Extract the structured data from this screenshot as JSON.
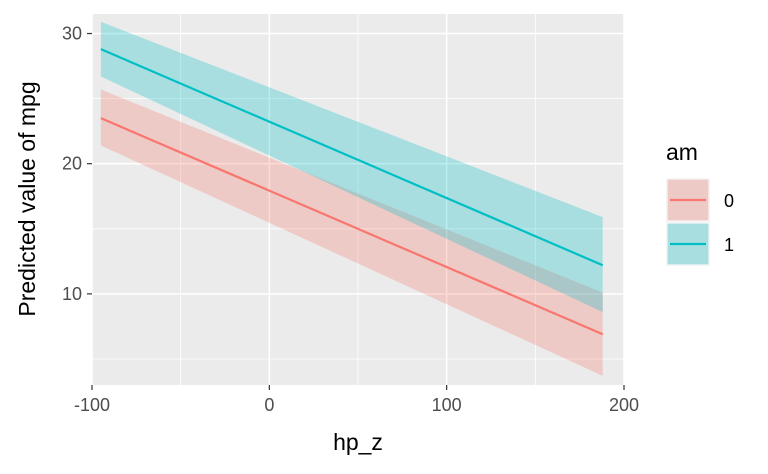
{
  "chart_data": {
    "type": "line",
    "xlabel": "hp_z",
    "ylabel": "Predicted value of mpg",
    "xlim": [
      -100,
      200
    ],
    "ylim": [
      3,
      31.5
    ],
    "x_ticks": [
      -100,
      0,
      100,
      200
    ],
    "y_ticks": [
      10,
      20,
      30
    ],
    "grid": true,
    "legend": {
      "title": "am",
      "position": "right"
    },
    "series": [
      {
        "name": "0",
        "color": "#F8766D",
        "x": [
          -95,
          188
        ],
        "y": [
          23.5,
          6.9
        ],
        "ci_lower": [
          21.4,
          3.7
        ],
        "ci_upper": [
          25.7,
          10.1
        ]
      },
      {
        "name": "1",
        "color": "#00BFC4",
        "x": [
          -95,
          188
        ],
        "y": [
          28.8,
          12.2
        ],
        "ci_lower": [
          26.7,
          8.6
        ],
        "ci_upper": [
          30.9,
          15.9
        ]
      }
    ]
  }
}
